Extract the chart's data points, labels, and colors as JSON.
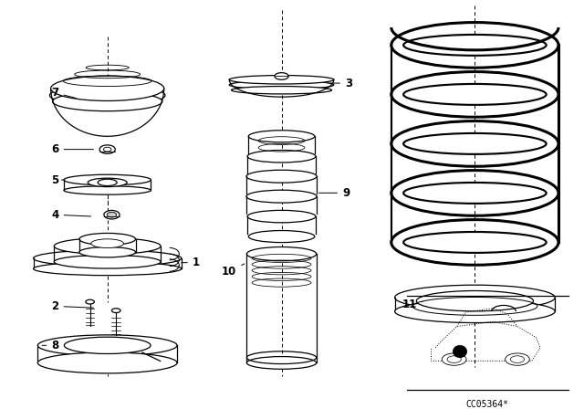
{
  "background_color": "#ffffff",
  "code_number": "CC05364*",
  "fig_width": 6.4,
  "fig_height": 4.48,
  "dpi": 100,
  "lw": 0.9,
  "spring_lw": 2.2,
  "label_fs": 8.5
}
